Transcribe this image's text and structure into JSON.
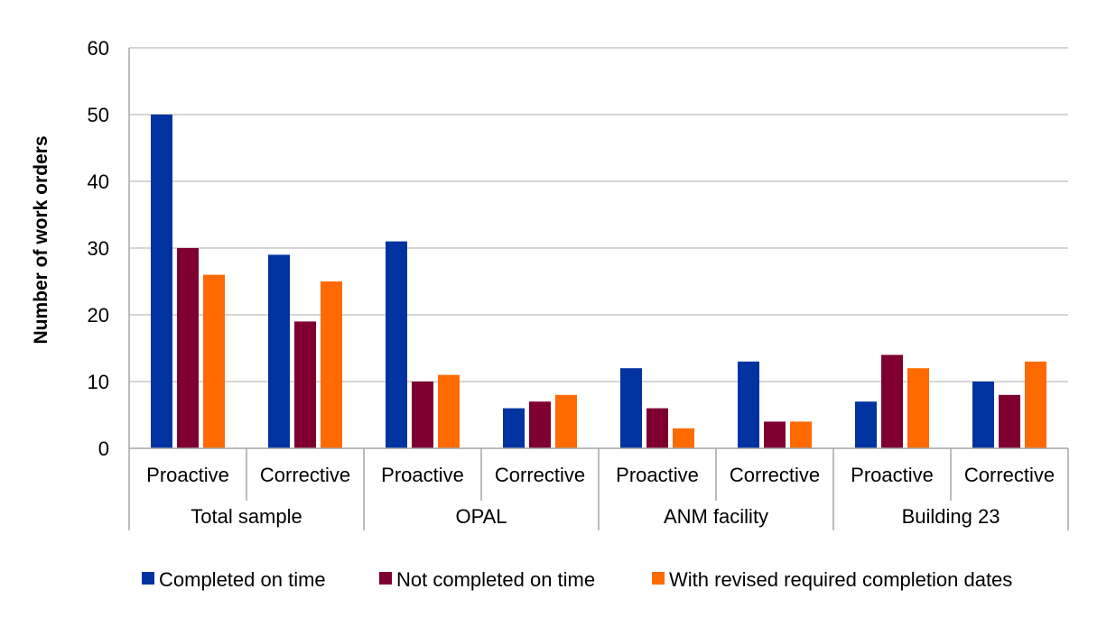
{
  "chart_data": {
    "type": "bar",
    "title": "",
    "xlabel": "",
    "ylabel": "Number of work orders",
    "ylim": [
      0,
      60
    ],
    "yticks": [
      0,
      10,
      20,
      30,
      40,
      50,
      60
    ],
    "grid": true,
    "legend_position": "bottom",
    "groups": [
      {
        "label": "Total sample",
        "subcategories": [
          "Proactive",
          "Corrective"
        ]
      },
      {
        "label": "OPAL",
        "subcategories": [
          "Proactive",
          "Corrective"
        ]
      },
      {
        "label": "ANM facility",
        "subcategories": [
          "Proactive",
          "Corrective"
        ]
      },
      {
        "label": "Building 23",
        "subcategories": [
          "Proactive",
          "Corrective"
        ]
      }
    ],
    "categories": [
      "Proactive",
      "Corrective",
      "Proactive",
      "Corrective",
      "Proactive",
      "Corrective",
      "Proactive",
      "Corrective"
    ],
    "series": [
      {
        "name": "Completed on time",
        "color": "#0033A0",
        "values": [
          50,
          29,
          31,
          6,
          12,
          13,
          7,
          10
        ]
      },
      {
        "name": "Not completed on time",
        "color": "#7F0030",
        "values": [
          30,
          19,
          10,
          7,
          6,
          4,
          14,
          8
        ]
      },
      {
        "name": "With revised required completion dates",
        "color": "#FF6A00",
        "values": [
          26,
          25,
          11,
          8,
          3,
          4,
          12,
          13
        ]
      }
    ]
  }
}
